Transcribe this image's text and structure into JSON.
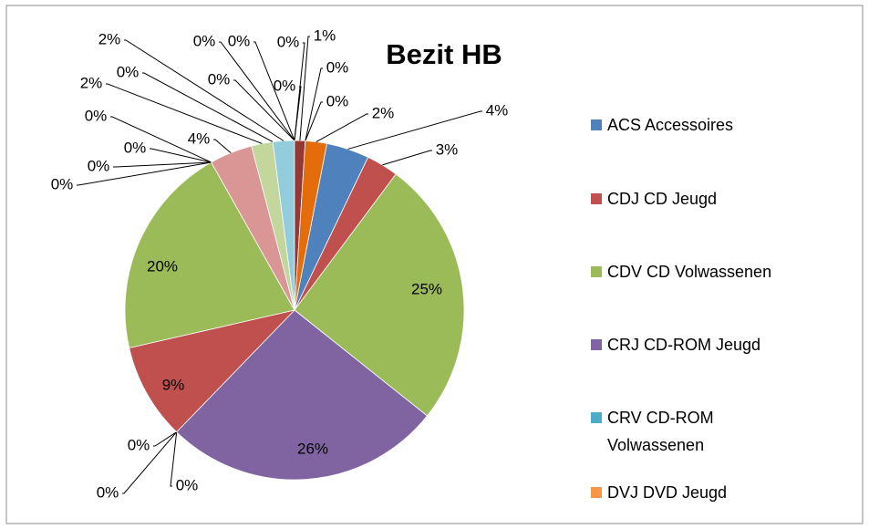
{
  "chart_data": {
    "type": "pie",
    "title": "Bezit HB",
    "categories": [
      "ACS Accessoires",
      "CDJ CD Jeugd",
      "CDV CD Volwassenen",
      "CRJ CD-ROM Jeugd",
      "CRV CD-ROM Volwassenen",
      "DVJ DVD Jeugd",
      null,
      null,
      null,
      null,
      null,
      null,
      null,
      null,
      null,
      null,
      null,
      null,
      null,
      null,
      null,
      null,
      null,
      null,
      null,
      null
    ],
    "values": [
      4,
      3,
      25,
      26,
      0,
      0,
      0,
      9,
      20,
      0,
      0,
      0,
      0,
      4,
      2,
      0,
      2,
      0,
      0,
      0,
      0,
      0,
      1,
      0,
      0,
      2
    ],
    "value_labels": [
      "4%",
      "3%",
      "25%",
      "26%",
      "0%",
      "0%",
      "0%",
      "9%",
      "20%",
      "0%",
      "0%",
      "0%",
      "0%",
      "4%",
      "2%",
      "0%",
      "2%",
      "0%",
      "0%",
      "0%",
      "0%",
      "0%",
      "1%",
      "0%",
      "0%",
      "2%"
    ],
    "colors": [
      "#4f81bd",
      "#c0504d",
      "#9bbb59",
      "#8064a2",
      "#4bacc6",
      "#f79646",
      "#2c4d75",
      "#c0504d",
      "#9bbb59",
      "#5c4776",
      "#357d91",
      "#b66d31",
      "#4bacc6",
      "#d99694",
      "#c3d69b",
      "#b3a2c7",
      "#93cddd",
      "#fac090",
      "#254061",
      "#632523",
      "#4f6228",
      "#3f3151",
      "#953735",
      "#215968",
      "#984807",
      "#e46c0a"
    ],
    "legend": "right"
  }
}
